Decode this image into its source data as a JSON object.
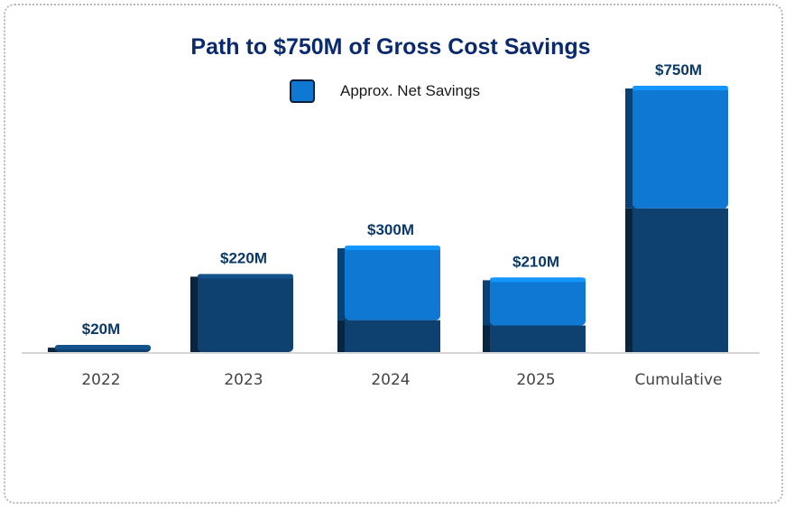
{
  "chart_data": {
    "type": "bar",
    "title": "Path to $750M of Gross Cost Savings",
    "categories": [
      "2022",
      "2023",
      "2024",
      "2025",
      "Cumulative"
    ],
    "series": [
      {
        "name": "",
        "values": [
          20,
          220,
          90,
          75,
          405
        ],
        "color": "#0f4170"
      },
      {
        "name": "Approx. Net Savings",
        "values": [
          0,
          0,
          210,
          135,
          345
        ],
        "color": "#0f78d2"
      }
    ],
    "totals": [
      20,
      220,
      300,
      210,
      750
    ],
    "data_labels": [
      "$20M",
      "$220M",
      "$300M",
      "$210M",
      "$750M"
    ],
    "ylim": [
      0,
      800
    ],
    "grid": false,
    "legend_position": "top-center",
    "label_color": "#0b3a66",
    "axis_label_color": "#444444"
  }
}
